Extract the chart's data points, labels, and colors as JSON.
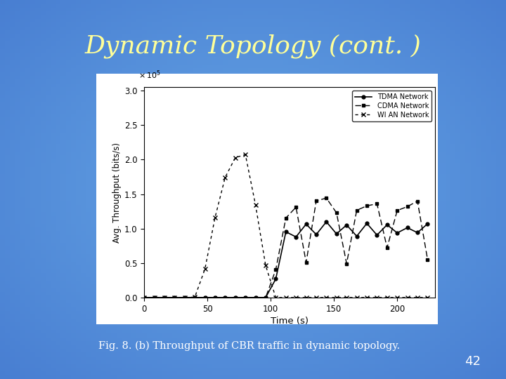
{
  "title": "Dynamic Topology (cont. )",
  "xlabel": "Time (s)",
  "ylabel": "Avg. Throughput (bits/s)",
  "xlim": [
    0,
    230
  ],
  "ylim": [
    0,
    3.05
  ],
  "yticks": [
    0,
    0.5,
    1.0,
    1.5,
    2.0,
    2.5,
    3.0
  ],
  "xticks": [
    0,
    50,
    100,
    150,
    200
  ],
  "title_color": "#ffff99",
  "caption": "Fig. 8. (b) Throughput of CBR traffic in dynamic topology.",
  "caption_color": "#ffffff",
  "page_number": "42",
  "page_color": "#ffffff",
  "legend_entries": [
    "TDMA Network",
    "CDMA Network",
    "WI AN Network"
  ]
}
